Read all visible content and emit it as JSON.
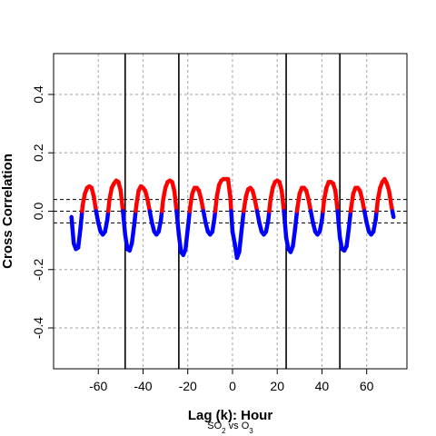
{
  "chart_data": {
    "type": "line",
    "xlabel": "Lag (k): Hour",
    "ylabel": "Cross Correlation",
    "subtitle_main": "SO",
    "subtitle_sub1": "2",
    "subtitle_mid": " vs O",
    "subtitle_sub2": "3",
    "xlim": [
      -80,
      78
    ],
    "ylim": [
      -0.54,
      0.54
    ],
    "x_ticks": [
      -60,
      -40,
      -20,
      0,
      20,
      40,
      60
    ],
    "x_tick_labels": [
      "-60",
      "-40",
      "-20",
      "0",
      "20",
      "40",
      "60"
    ],
    "y_ticks": [
      -0.4,
      -0.2,
      0.0,
      0.2,
      0.4
    ],
    "y_tick_labels": [
      "-0.4",
      "-0.2",
      "0.0",
      "0.2",
      "0.4"
    ],
    "x_gridlines": [
      -60,
      -40,
      -20,
      0,
      20,
      40,
      60
    ],
    "y_gridlines": [
      -0.4,
      -0.2,
      0.2,
      0.4
    ],
    "grid": true,
    "confidence_bounds": [
      0.04,
      -0.04
    ],
    "reference_lines_x": [
      -48,
      -24,
      24,
      48
    ],
    "zero_line": 0.0,
    "colors": {
      "positive": "#ff0000",
      "negative": "#0000ff",
      "reference": "#000000",
      "grid": "#b3b3b3"
    },
    "series": [
      {
        "x": [
          -72,
          -71,
          -70,
          -69,
          -68,
          -67,
          -66,
          -65,
          -64,
          -63,
          -62,
          -61,
          -60,
          -59,
          -58,
          -57,
          -56,
          -55,
          -54,
          -53,
          -52,
          -51,
          -50,
          -49,
          -48,
          -47,
          -46,
          -45,
          -44,
          -43,
          -42,
          -41,
          -40,
          -39,
          -38,
          -37,
          -36,
          -35,
          -34,
          -33,
          -32,
          -31,
          -30,
          -29,
          -28,
          -27,
          -26,
          -25,
          -24,
          -23,
          -22,
          -21,
          -20,
          -19,
          -18,
          -17,
          -16,
          -15,
          -14,
          -13,
          -12,
          -11,
          -10,
          -9,
          -8,
          -7,
          -6,
          -5,
          -4,
          -3,
          -2,
          -1,
          0,
          1,
          2,
          3,
          4,
          5,
          6,
          7,
          8,
          9,
          10,
          11,
          12,
          13,
          14,
          15,
          16,
          17,
          18,
          19,
          20,
          21,
          22,
          23,
          24,
          25,
          26,
          27,
          28,
          29,
          30,
          31,
          32,
          33,
          34,
          35,
          36,
          37,
          38,
          39,
          40,
          41,
          42,
          43,
          44,
          45,
          46,
          47,
          48,
          49,
          50,
          51,
          52,
          53,
          54,
          55,
          56,
          57,
          58,
          59,
          60,
          61,
          62,
          63,
          64,
          65,
          66,
          67,
          68,
          69,
          70,
          71,
          72
        ],
        "y": [
          -0.02,
          -0.11,
          -0.13,
          -0.125,
          -0.06,
          0.02,
          0.06,
          0.08,
          0.085,
          0.08,
          0.05,
          0.0,
          -0.04,
          -0.07,
          -0.08,
          -0.07,
          -0.03,
          0.04,
          0.08,
          0.095,
          0.105,
          0.1,
          0.07,
          0.0,
          -0.08,
          -0.13,
          -0.135,
          -0.11,
          -0.05,
          0.02,
          0.07,
          0.085,
          0.08,
          0.07,
          0.04,
          0.0,
          -0.04,
          -0.07,
          -0.08,
          -0.07,
          -0.03,
          0.04,
          0.08,
          0.1,
          0.105,
          0.1,
          0.07,
          0.0,
          -0.08,
          -0.14,
          -0.15,
          -0.13,
          -0.06,
          0.01,
          0.06,
          0.08,
          0.08,
          0.07,
          0.04,
          0.0,
          -0.04,
          -0.07,
          -0.08,
          -0.07,
          -0.02,
          0.05,
          0.09,
          0.105,
          0.11,
          0.11,
          0.11,
          0.05,
          -0.07,
          -0.11,
          -0.16,
          -0.14,
          -0.07,
          0.0,
          0.05,
          0.075,
          0.08,
          0.07,
          0.04,
          0.0,
          -0.04,
          -0.07,
          -0.08,
          -0.07,
          -0.03,
          0.04,
          0.08,
          0.1,
          0.105,
          0.1,
          0.07,
          0.0,
          -0.09,
          -0.13,
          -0.14,
          -0.12,
          -0.06,
          0.01,
          0.06,
          0.08,
          0.08,
          0.07,
          0.04,
          0.0,
          -0.04,
          -0.07,
          -0.08,
          -0.07,
          -0.03,
          0.04,
          0.08,
          0.1,
          0.1,
          0.095,
          0.07,
          0.0,
          -0.09,
          -0.13,
          -0.135,
          -0.12,
          -0.06,
          0.01,
          0.06,
          0.08,
          0.08,
          0.07,
          0.04,
          0.0,
          -0.04,
          -0.07,
          -0.08,
          -0.07,
          -0.03,
          0.04,
          0.08,
          0.1,
          0.11,
          0.095,
          0.07,
          0.02,
          -0.02
        ]
      }
    ]
  }
}
